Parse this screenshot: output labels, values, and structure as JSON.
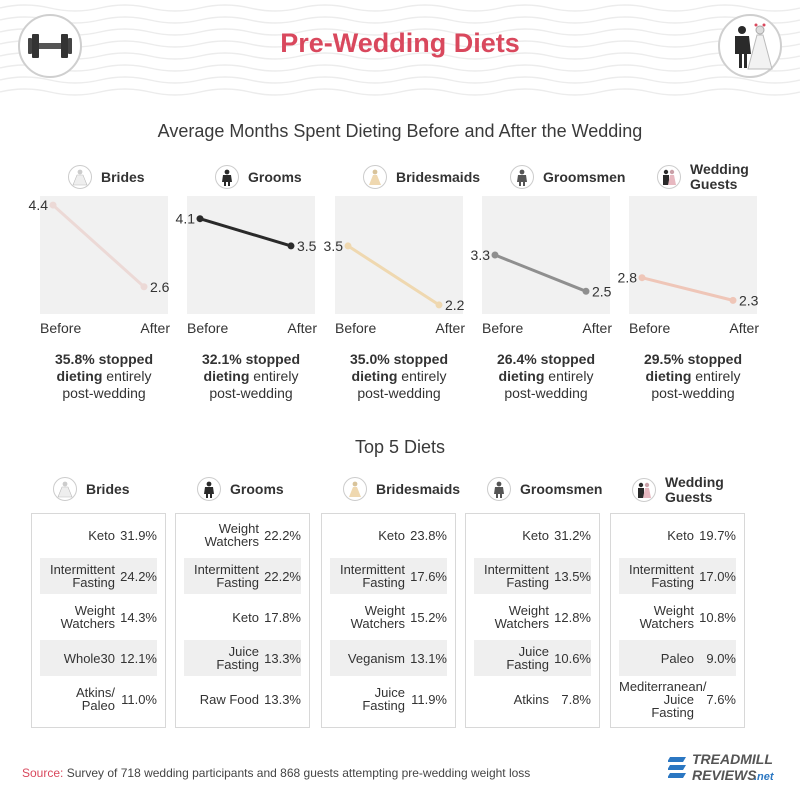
{
  "header": {
    "title": "Pre-Wedding Diets",
    "left_icon": "dumbbell-icon",
    "right_icon": "bride-groom-icon"
  },
  "colors": {
    "accent": "#d9485d",
    "plot_bg": "#f1f1f1",
    "row_shade": "#efefef",
    "brand_blue": "#2b77c2"
  },
  "chart_data": [
    {
      "type": "line",
      "title": "Average Months Spent Dieting Before and After the Wedding",
      "x": [
        "Before",
        "After"
      ],
      "xlabel": "",
      "ylabel": "",
      "series": [
        {
          "name": "Brides",
          "values": [
            4.4,
            2.6
          ],
          "color": "#ecd9d6",
          "icon": "bride-icon",
          "stopped_bold": "35.8% stopped dieting",
          "stopped_rest1": " entirely",
          "stopped_rest2": "post-wedding"
        },
        {
          "name": "Grooms",
          "values": [
            4.1,
            3.5
          ],
          "color": "#2a2a2a",
          "icon": "groom-icon",
          "stopped_bold": "32.1% stopped dieting",
          "stopped_rest1": " entirely",
          "stopped_rest2": "post-wedding"
        },
        {
          "name": "Bridesmaids",
          "values": [
            3.5,
            2.2
          ],
          "color": "#efd8b0",
          "icon": "bridesmaid-icon",
          "stopped_bold": "35.0% stopped dieting",
          "stopped_rest1": " entirely",
          "stopped_rest2": "post-wedding"
        },
        {
          "name": "Groomsmen",
          "values": [
            3.3,
            2.5
          ],
          "color": "#8f8f8f",
          "icon": "groomsman-icon",
          "stopped_bold": "26.4% stopped dieting",
          "stopped_rest1": " entirely",
          "stopped_rest2": "post-wedding"
        },
        {
          "name": "Wedding Guests",
          "values": [
            2.8,
            2.3
          ],
          "color": "#efc6b8",
          "icon": "guests-icon",
          "stopped_bold": "29.5% stopped dieting",
          "stopped_rest1": " entirely",
          "stopped_rest2": "post-wedding"
        }
      ]
    },
    {
      "type": "table",
      "title": "Top 5 Diets",
      "groups": [
        {
          "name": "Brides",
          "icon": "bride-icon",
          "rows": [
            {
              "diet": "Keto",
              "pct": "31.9%"
            },
            {
              "diet": "Intermittent Fasting",
              "pct": "24.2%"
            },
            {
              "diet": "Weight Watchers",
              "pct": "14.3%"
            },
            {
              "diet": "Whole30",
              "pct": "12.1%"
            },
            {
              "diet": "Atkins/ Paleo",
              "pct": "11.0%"
            }
          ]
        },
        {
          "name": "Grooms",
          "icon": "groom-icon",
          "rows": [
            {
              "diet": "Weight Watchers",
              "pct": "22.2%"
            },
            {
              "diet": "Intermittent Fasting",
              "pct": "22.2%"
            },
            {
              "diet": "Keto",
              "pct": "17.8%"
            },
            {
              "diet": "Juice Fasting",
              "pct": "13.3%"
            },
            {
              "diet": "Raw Food",
              "pct": "13.3%"
            }
          ]
        },
        {
          "name": "Bridesmaids",
          "icon": "bridesmaid-icon",
          "rows": [
            {
              "diet": "Keto",
              "pct": "23.8%"
            },
            {
              "diet": "Intermittent Fasting",
              "pct": "17.6%"
            },
            {
              "diet": "Weight Watchers",
              "pct": "15.2%"
            },
            {
              "diet": "Veganism",
              "pct": "13.1%"
            },
            {
              "diet": "Juice Fasting",
              "pct": "11.9%"
            }
          ]
        },
        {
          "name": "Groomsmen",
          "icon": "groomsman-icon",
          "rows": [
            {
              "diet": "Keto",
              "pct": "31.2%"
            },
            {
              "diet": "Intermittent Fasting",
              "pct": "13.5%"
            },
            {
              "diet": "Weight Watchers",
              "pct": "12.8%"
            },
            {
              "diet": "Juice Fasting",
              "pct": "10.6%"
            },
            {
              "diet": "Atkins",
              "pct": "7.8%"
            }
          ]
        },
        {
          "name": "Wedding Guests",
          "icon": "guests-icon",
          "rows": [
            {
              "diet": "Keto",
              "pct": "19.7%"
            },
            {
              "diet": "Intermittent Fasting",
              "pct": "17.0%"
            },
            {
              "diet": "Weight Watchers",
              "pct": "10.8%"
            },
            {
              "diet": "Paleo",
              "pct": "9.0%"
            },
            {
              "diet": "Mediterranean/ Juice Fasting",
              "pct": "7.6%"
            }
          ]
        }
      ]
    }
  ],
  "footer": {
    "source_label": "Source:",
    "source_text": " Survey of 718 wedding participants and 868 guests attempting pre-wedding weight loss",
    "brand_line1": "TREADMILL",
    "brand_line2": "REVIEWS",
    "brand_tld": ".net"
  }
}
